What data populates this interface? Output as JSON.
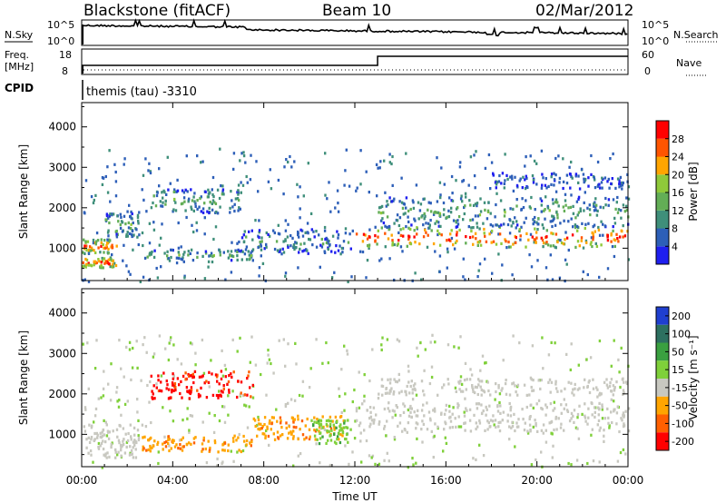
{
  "header": {
    "station": "Blackstone (fitACF)",
    "beam": "Beam 10",
    "date": "02/Mar/2012"
  },
  "strips": {
    "noise": {
      "left_label": "N.Sky",
      "left_ticks": [
        "10^5",
        "10^0"
      ],
      "right_label": "N.Search",
      "right_ticks": [
        "10^5",
        "10^0"
      ]
    },
    "freq": {
      "left_label_1": "Freq.",
      "left_label_2": "[MHz]",
      "left_ticks": [
        "18",
        "8"
      ],
      "right_label": "Nave",
      "right_ticks": [
        "60",
        "0"
      ],
      "step_at_hour": 13
    },
    "cpid": {
      "label": "CPID",
      "text": "themis (tau) -3310"
    }
  },
  "chart_data": [
    {
      "type": "heatmap",
      "name": "power-panel",
      "xlabel": "Time UT",
      "ylabel": "Slant Range [km]",
      "xlim": [
        0,
        24
      ],
      "ylim": [
        200,
        4600
      ],
      "x_ticks": [
        "00:00",
        "04:00",
        "08:00",
        "12:00",
        "16:00",
        "20:00",
        "00:00"
      ],
      "y_ticks": [
        1000,
        2000,
        3000,
        4000
      ],
      "colorbar": {
        "label": "Power [dB]",
        "ticks": [
          4,
          8,
          12,
          16,
          20,
          24,
          28
        ],
        "range": [
          0,
          32
        ],
        "colors": [
          "#1f1fef",
          "#2d5fb8",
          "#3f8f7a",
          "#63ae56",
          "#8fc93a",
          "#ffa500",
          "#ff5500",
          "#ff0000"
        ]
      },
      "bands": [
        {
          "t0": 0.0,
          "t1": 1.5,
          "r0": 550,
          "r1": 800,
          "level": 0.9
        },
        {
          "t0": 0.0,
          "t1": 1.5,
          "r0": 900,
          "r1": 1250,
          "level": 0.8
        },
        {
          "t0": 1.0,
          "t1": 2.5,
          "r0": 1300,
          "r1": 1900,
          "level": 0.4
        },
        {
          "t0": 2.5,
          "t1": 7.5,
          "r0": 700,
          "r1": 1000,
          "level": 0.4
        },
        {
          "t0": 3.0,
          "t1": 7.0,
          "r0": 1900,
          "r1": 2500,
          "level": 0.4
        },
        {
          "t0": 7.0,
          "t1": 11.8,
          "r0": 900,
          "r1": 1500,
          "level": 0.3
        },
        {
          "t0": 12.0,
          "t1": 24.0,
          "r0": 1050,
          "r1": 1550,
          "level": 0.9
        },
        {
          "t0": 13.0,
          "t1": 24.0,
          "r0": 1550,
          "r1": 2300,
          "level": 0.4
        },
        {
          "t0": 18.0,
          "t1": 24.0,
          "r0": 2500,
          "r1": 2900,
          "level": 0.2
        }
      ]
    },
    {
      "type": "heatmap",
      "name": "velocity-panel",
      "xlabel": "Time UT",
      "ylabel": "Slant Range [km]",
      "xlim": [
        0,
        24
      ],
      "ylim": [
        200,
        4600
      ],
      "x_ticks": [
        "00:00",
        "04:00",
        "08:00",
        "12:00",
        "16:00",
        "20:00",
        "00:00"
      ],
      "y_ticks": [
        1000,
        2000,
        3000,
        4000
      ],
      "colorbar": {
        "label": "Velocity [m s⁻¹]",
        "ticks": [
          "200",
          "100",
          "50",
          "15",
          "-15",
          "-50",
          "-100",
          "-200"
        ],
        "colors": [
          "#1f3fd0",
          "#2d7060",
          "#3aa040",
          "#7fd03a",
          "#c8c8c0",
          "#ffa500",
          "#ff6000",
          "#ff0000"
        ]
      },
      "bands": [
        {
          "t0": 0.0,
          "t1": 2.5,
          "r0": 450,
          "r1": 1300,
          "level": "gray"
        },
        {
          "t0": 2.5,
          "t1": 7.5,
          "r0": 600,
          "r1": 1000,
          "level": "orange"
        },
        {
          "t0": 3.0,
          "t1": 7.5,
          "r0": 1900,
          "r1": 2600,
          "level": "red"
        },
        {
          "t0": 7.5,
          "t1": 11.5,
          "r0": 900,
          "r1": 1500,
          "level": "orange"
        },
        {
          "t0": 10.0,
          "t1": 12.0,
          "r0": 800,
          "r1": 1400,
          "level": "green"
        },
        {
          "t0": 12.0,
          "t1": 24.0,
          "r0": 1100,
          "r1": 1800,
          "level": "gray"
        },
        {
          "t0": 13.0,
          "t1": 24.0,
          "r0": 2000,
          "r1": 2400,
          "level": "gray"
        }
      ]
    }
  ]
}
